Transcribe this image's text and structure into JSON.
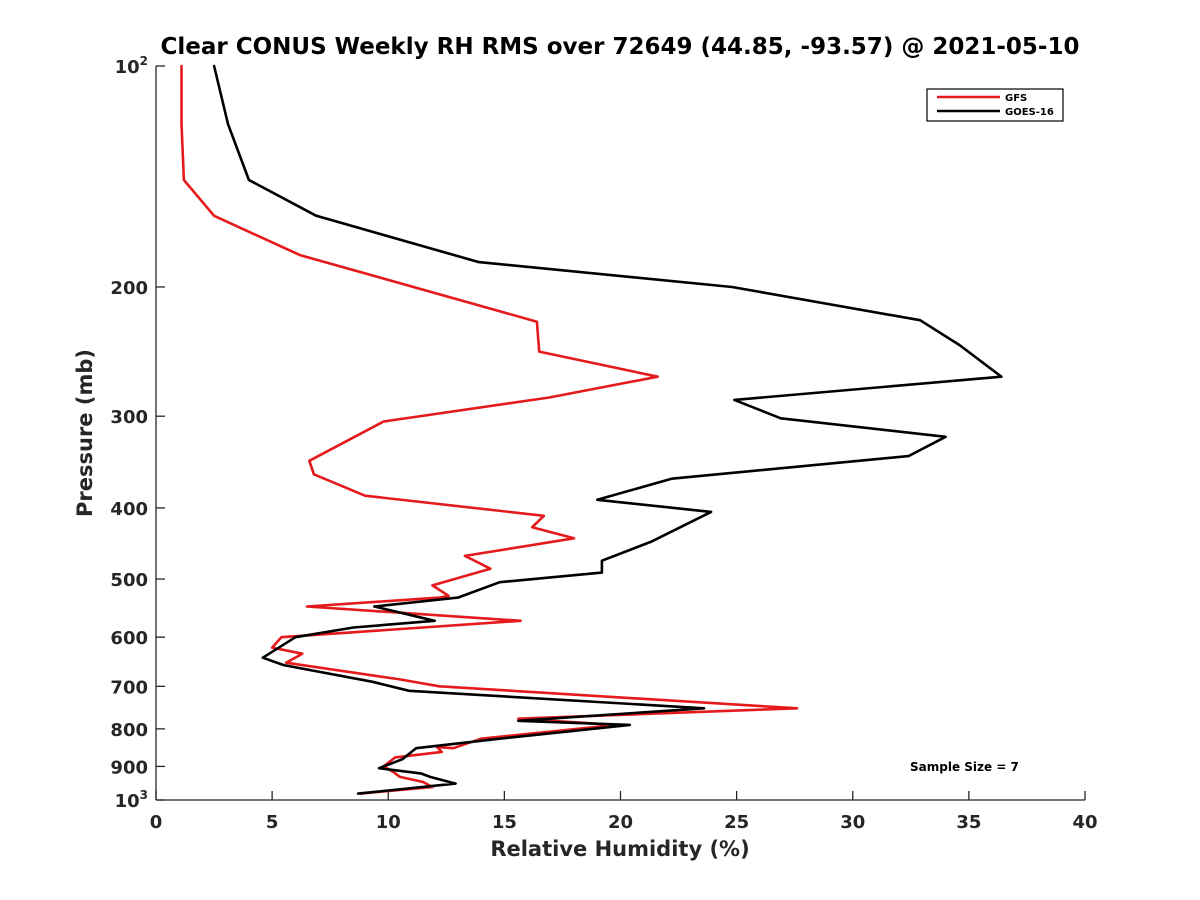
{
  "chart_data": {
    "type": "line",
    "title": "Clear CONUS Weekly RH RMS over 72649 (44.85, -93.57) @ 2021-05-10",
    "xlabel": "Relative Humidity (%)",
    "ylabel": "Pressure (mb)",
    "xlim": [
      0,
      40
    ],
    "ylim": [
      100,
      1000
    ],
    "y_scale": "log",
    "y_reversed": true,
    "grid": false,
    "legend_position": "top-right",
    "x_ticks": [
      "0",
      "5",
      "10",
      "15",
      "20",
      "25",
      "30",
      "35",
      "40"
    ],
    "y_ticks": [
      {
        "value": 100,
        "base": "10",
        "exp": "2"
      },
      {
        "value": 200,
        "label": "200"
      },
      {
        "value": 300,
        "label": "300"
      },
      {
        "value": 400,
        "label": "400"
      },
      {
        "value": 500,
        "label": "500"
      },
      {
        "value": 600,
        "label": "600"
      },
      {
        "value": 700,
        "label": "700"
      },
      {
        "value": 800,
        "label": "800"
      },
      {
        "value": 900,
        "label": "900"
      },
      {
        "value": 1000,
        "base": "10",
        "exp": "3"
      }
    ],
    "series": [
      {
        "name": "GFS",
        "color": "#e41a1c",
        "x": [
          1.1,
          1.1,
          1.2,
          2.5,
          6.2,
          16.4,
          16.5,
          21.6,
          16.9,
          9.8,
          6.6,
          6.8,
          9.0,
          16.7,
          16.2,
          18.0,
          13.3,
          14.4,
          11.9,
          12.6,
          12.2,
          6.5,
          15.7,
          5.4,
          5.0,
          6.3,
          5.6,
          10.5,
          12.2,
          27.6,
          15.6,
          19.8,
          14.0,
          12.8,
          12.1,
          12.3,
          10.3,
          9.8,
          10.2,
          10.5,
          11.5,
          11.9,
          8.8
        ],
        "y": [
          100,
          120,
          143,
          160,
          181,
          223,
          245,
          265,
          283,
          305,
          345,
          360,
          385,
          410,
          425,
          440,
          465,
          484,
          510,
          527,
          530,
          545,
          570,
          600,
          620,
          632,
          650,
          685,
          700,
          750,
          775,
          790,
          825,
          850,
          847,
          860,
          875,
          900,
          915,
          930,
          945,
          960,
          980
        ]
      },
      {
        "name": "GOES-16",
        "color": "#000000",
        "x": [
          2.5,
          3.1,
          4.0,
          6.9,
          13.9,
          24.8,
          32.9,
          34.6,
          36.4,
          24.9,
          26.9,
          34.0,
          32.4,
          22.2,
          19.0,
          23.9,
          21.3,
          19.2,
          19.2,
          14.8,
          13.0,
          9.4,
          12.0,
          8.5,
          6.0,
          4.6,
          5.5,
          9.3,
          10.9,
          23.6,
          15.6,
          20.4,
          14.8,
          11.2,
          10.9,
          10.6,
          9.6,
          10.4,
          11.4,
          11.8,
          12.9,
          8.7
        ],
        "y": [
          100,
          120,
          143,
          160,
          185,
          200,
          222,
          240,
          265,
          285,
          302,
          320,
          340,
          365,
          390,
          405,
          445,
          472,
          490,
          505,
          530,
          545,
          570,
          582,
          600,
          640,
          655,
          690,
          710,
          750,
          780,
          790,
          825,
          850,
          865,
          880,
          905,
          912,
          920,
          930,
          950,
          980
        ]
      }
    ],
    "annotation": "Sample Size = 7"
  }
}
